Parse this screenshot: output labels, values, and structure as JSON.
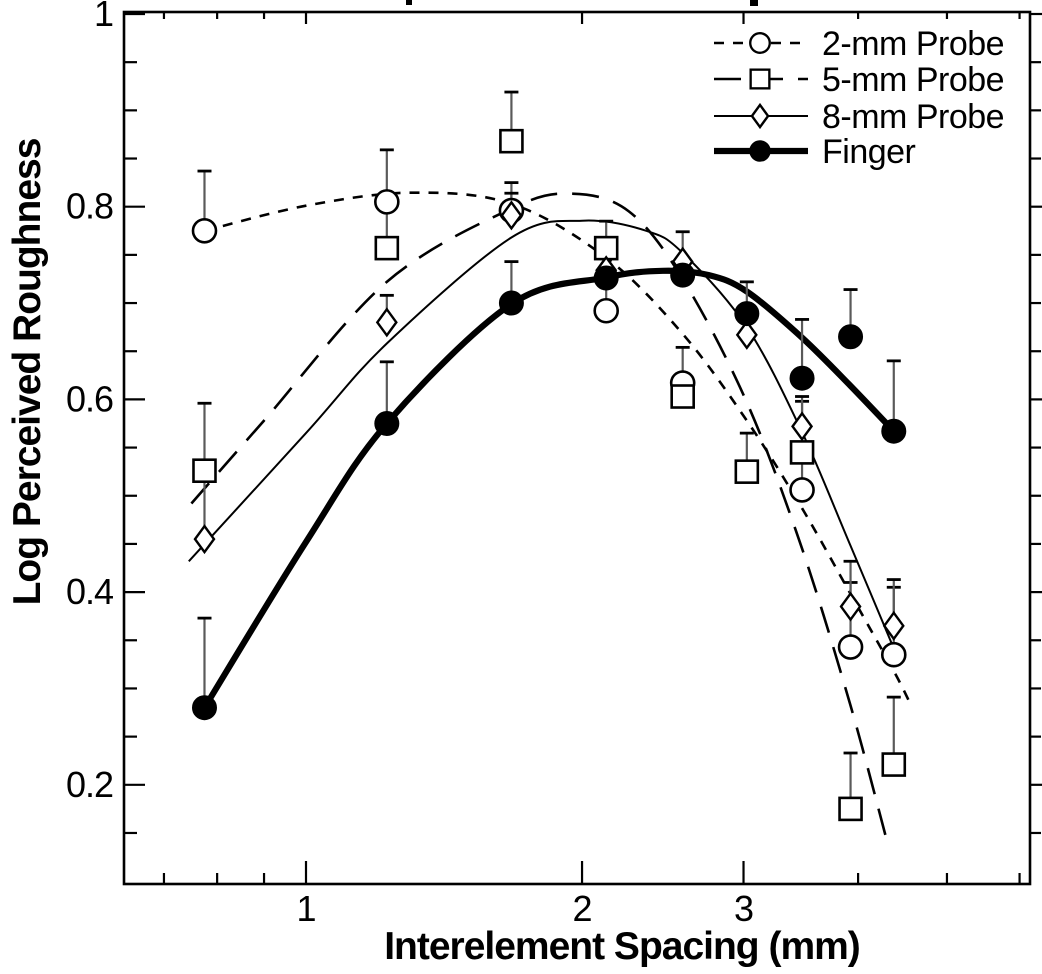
{
  "figure": {
    "background": "#ffffff",
    "ink_color": "#000000",
    "error_bar_color": "#5a5a5a"
  },
  "chart_data": {
    "type": "scatter",
    "title": "",
    "xlabel": "Interelement Spacing (mm)",
    "ylabel": "Log Perceived Roughness",
    "x_scale": "log10",
    "xlim": [
      0.634,
      6.15
    ],
    "ylim": [
      0.097,
      1.0
    ],
    "x_major_ticks": [
      1,
      2,
      3
    ],
    "x_major_tick_labels": [
      "1",
      "2",
      "3"
    ],
    "x_minor_ticks": [
      0.7,
      0.8,
      0.9,
      4,
      5,
      6
    ],
    "y_major_ticks": [
      1,
      0.8,
      0.6,
      0.4,
      0.2
    ],
    "y_major_tick_labels": [
      "1",
      "0.8",
      "0.6",
      "0.4",
      "0.2"
    ],
    "y_minor_ticks": [
      0.95,
      0.9,
      0.85,
      0.75,
      0.7,
      0.65,
      0.55,
      0.5,
      0.45,
      0.35,
      0.3,
      0.25,
      0.15
    ],
    "grid": false,
    "legend_position": "top-right",
    "series": [
      {
        "name": "2-mm Probe",
        "marker": "open-circle",
        "line_style": "dashed",
        "color": "#000000",
        "points": [
          {
            "x": 0.775,
            "y": 0.775,
            "err_top": 0.837
          },
          {
            "x": 1.225,
            "y": 0.805,
            "err_top": 0.859
          },
          {
            "x": 1.675,
            "y": 0.796,
            "err_top": 0.825
          },
          {
            "x": 2.125,
            "y": 0.692,
            "err_top": 0.75
          },
          {
            "x": 2.575,
            "y": 0.617,
            "err_top": 0.654
          },
          {
            "x": 3.475,
            "y": 0.506,
            "err_top": 0.598
          },
          {
            "x": 3.925,
            "y": 0.343,
            "err_top": 0.41
          },
          {
            "x": 4.375,
            "y": 0.335,
            "err_top": 0.405
          }
        ],
        "fit_curve": [
          [
            0.775,
            0.775
          ],
          [
            1.0,
            0.801
          ],
          [
            1.3,
            0.8145
          ],
          [
            1.675,
            0.803
          ],
          [
            2.125,
            0.747
          ],
          [
            2.575,
            0.668
          ],
          [
            3.025,
            0.578
          ],
          [
            3.475,
            0.487
          ],
          [
            3.925,
            0.398
          ],
          [
            4.375,
            0.318
          ],
          [
            4.55,
            0.286
          ]
        ]
      },
      {
        "name": "5-mm Probe",
        "marker": "open-square",
        "line_style": "long-dash",
        "color": "#000000",
        "points": [
          {
            "x": 0.775,
            "y": 0.526,
            "err_top": 0.596
          },
          {
            "x": 1.225,
            "y": 0.757,
            "err_top": 0.805
          },
          {
            "x": 1.675,
            "y": 0.868,
            "err_top": 0.919
          },
          {
            "x": 2.125,
            "y": 0.757,
            "err_top": 0.785
          },
          {
            "x": 2.575,
            "y": 0.603,
            "err_top": null
          },
          {
            "x": 3.025,
            "y": 0.525,
            "err_top": 0.565
          },
          {
            "x": 3.475,
            "y": 0.545,
            "err_top": null
          },
          {
            "x": 3.925,
            "y": 0.175,
            "err_top": 0.233
          },
          {
            "x": 4.375,
            "y": 0.221,
            "err_top": 0.291
          }
        ],
        "fit_curve": [
          [
            0.75,
            0.492
          ],
          [
            0.9,
            0.578
          ],
          [
            1.225,
            0.722
          ],
          [
            1.675,
            0.798
          ],
          [
            1.95,
            0.8135
          ],
          [
            2.25,
            0.795
          ],
          [
            2.575,
            0.725
          ],
          [
            3.025,
            0.597
          ],
          [
            3.475,
            0.445
          ],
          [
            3.925,
            0.282
          ],
          [
            4.3,
            0.142
          ]
        ]
      },
      {
        "name": "8-mm Probe",
        "marker": "open-diamond",
        "line_style": "solid-thin",
        "color": "#000000",
        "points": [
          {
            "x": 0.775,
            "y": 0.455,
            "err_top": 0.52
          },
          {
            "x": 1.225,
            "y": 0.68,
            "err_top": 0.708
          },
          {
            "x": 1.675,
            "y": 0.791,
            "err_top": 0.814
          },
          {
            "x": 2.125,
            "y": 0.734,
            "err_top": null
          },
          {
            "x": 2.575,
            "y": 0.743,
            "err_top": 0.774
          },
          {
            "x": 3.025,
            "y": 0.667,
            "err_top": null
          },
          {
            "x": 3.475,
            "y": 0.572,
            "err_top": 0.603
          },
          {
            "x": 3.925,
            "y": 0.385,
            "err_top": 0.432
          },
          {
            "x": 4.375,
            "y": 0.365,
            "err_top": 0.413
          }
        ],
        "fit_curve": [
          [
            0.745,
            0.432
          ],
          [
            1.0,
            0.565
          ],
          [
            1.225,
            0.658
          ],
          [
            1.675,
            0.768
          ],
          [
            2.0,
            0.7855
          ],
          [
            2.35,
            0.775
          ],
          [
            2.575,
            0.752
          ],
          [
            3.025,
            0.675
          ],
          [
            3.475,
            0.566
          ],
          [
            3.925,
            0.448
          ],
          [
            4.45,
            0.325
          ]
        ]
      },
      {
        "name": "Finger",
        "marker": "filled-circle",
        "line_style": "solid-thick",
        "color": "#000000",
        "points": [
          {
            "x": 0.775,
            "y": 0.28,
            "err_top": 0.373
          },
          {
            "x": 1.225,
            "y": 0.575,
            "err_top": 0.639
          },
          {
            "x": 1.675,
            "y": 0.7,
            "err_top": 0.743
          },
          {
            "x": 2.125,
            "y": 0.726,
            "err_top": null
          },
          {
            "x": 2.575,
            "y": 0.729,
            "err_top": null
          },
          {
            "x": 3.025,
            "y": 0.689,
            "err_top": 0.722
          },
          {
            "x": 3.475,
            "y": 0.622,
            "err_top": 0.683
          },
          {
            "x": 3.925,
            "y": 0.665,
            "err_top": 0.714
          },
          {
            "x": 4.375,
            "y": 0.567,
            "err_top": 0.64
          }
        ],
        "fit_curve": [
          [
            0.775,
            0.28
          ],
          [
            1.0,
            0.452
          ],
          [
            1.225,
            0.575
          ],
          [
            1.675,
            0.699
          ],
          [
            2.125,
            0.7265
          ],
          [
            2.45,
            0.7335
          ],
          [
            2.75,
            0.729
          ],
          [
            3.025,
            0.712
          ],
          [
            3.475,
            0.664
          ],
          [
            3.925,
            0.614
          ],
          [
            4.375,
            0.567
          ]
        ]
      }
    ]
  }
}
